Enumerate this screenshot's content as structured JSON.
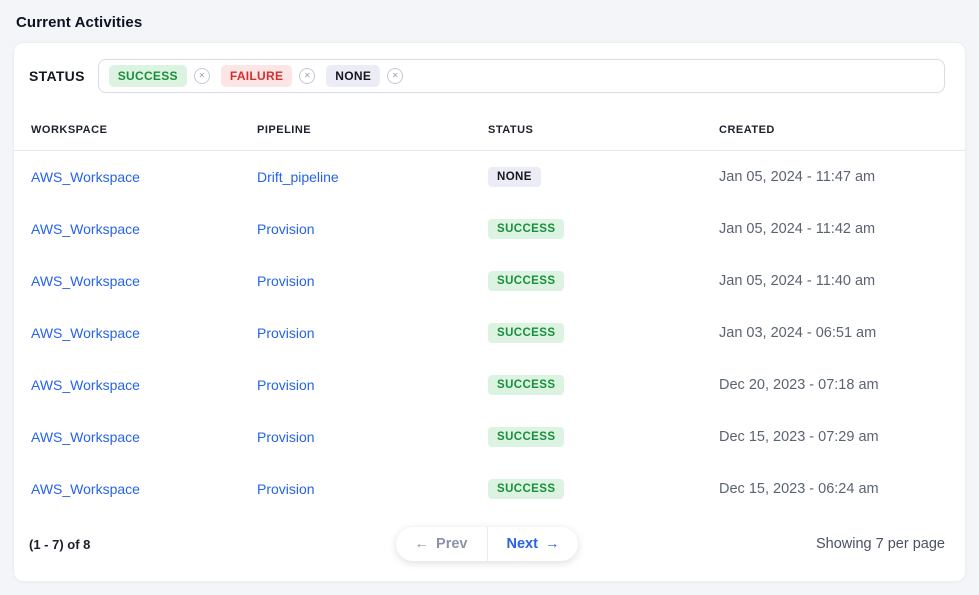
{
  "page": {
    "title": "Current Activities"
  },
  "filter": {
    "label": "STATUS",
    "remove_icon": "✕",
    "tags": [
      {
        "label": "SUCCESS",
        "type": "success"
      },
      {
        "label": "FAILURE",
        "type": "failure"
      },
      {
        "label": "NONE",
        "type": "none"
      }
    ],
    "input_value": "",
    "input_placeholder": ""
  },
  "table": {
    "columns": [
      "WORKSPACE",
      "PIPELINE",
      "STATUS",
      "CREATED"
    ],
    "rows": [
      {
        "workspace": "AWS_Workspace",
        "pipeline": "Drift_pipeline",
        "status": "NONE",
        "status_type": "none",
        "created": "Jan 05, 2024 - 11:47 am"
      },
      {
        "workspace": "AWS_Workspace",
        "pipeline": "Provision",
        "status": "SUCCESS",
        "status_type": "success",
        "created": "Jan 05, 2024 - 11:42 am"
      },
      {
        "workspace": "AWS_Workspace",
        "pipeline": "Provision",
        "status": "SUCCESS",
        "status_type": "success",
        "created": "Jan 05, 2024 - 11:40 am"
      },
      {
        "workspace": "AWS_Workspace",
        "pipeline": "Provision",
        "status": "SUCCESS",
        "status_type": "success",
        "created": "Jan 03, 2024 - 06:51 am"
      },
      {
        "workspace": "AWS_Workspace",
        "pipeline": "Provision",
        "status": "SUCCESS",
        "status_type": "success",
        "created": "Dec 20, 2023 - 07:18 am"
      },
      {
        "workspace": "AWS_Workspace",
        "pipeline": "Provision",
        "status": "SUCCESS",
        "status_type": "success",
        "created": "Dec 15, 2023 - 07:29 am"
      },
      {
        "workspace": "AWS_Workspace",
        "pipeline": "Provision",
        "status": "SUCCESS",
        "status_type": "success",
        "created": "Dec 15, 2023 - 06:24 am"
      }
    ]
  },
  "pagination": {
    "range_text": "(1 - 7) of 8",
    "prev_arrow": "←",
    "prev_label": "Prev",
    "next_label": "Next",
    "next_arrow": "→",
    "per_page_text": "Showing 7 per page"
  },
  "colors": {
    "page_background": "#f4f5f9",
    "card_background": "#ffffff",
    "link_blue": "#2563eb",
    "success_text": "#17903b",
    "success_background": "#ddf3e1",
    "failure_text": "#d32f2f",
    "failure_background": "#fce5e5",
    "none_text": "#16181d",
    "none_background": "#ebecf5",
    "created_text": "#5b6372",
    "prev_disabled": "#8b93a7"
  }
}
